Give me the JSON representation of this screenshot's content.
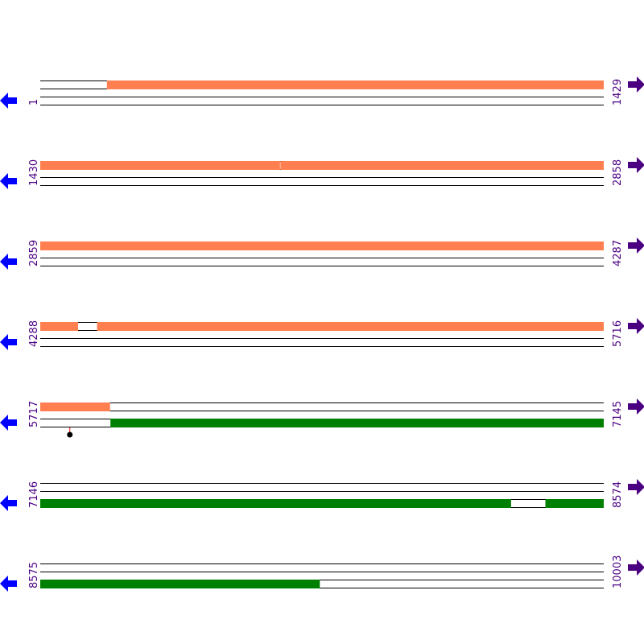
{
  "map": {
    "bases_per_row": 1429,
    "rows": [
      {
        "start": "1",
        "end": "1429"
      },
      {
        "start": "1430",
        "end": "2858"
      },
      {
        "start": "2859",
        "end": "4287"
      },
      {
        "start": "4288",
        "end": "5716"
      },
      {
        "start": "5717",
        "end": "7145"
      },
      {
        "start": "7146",
        "end": "8574"
      },
      {
        "start": "8575",
        "end": "10003"
      }
    ],
    "features": [
      {
        "track": "top",
        "color": "#ff7f50",
        "segments": [
          [
            170,
            2037
          ],
          [
            2039,
            4383
          ],
          [
            4432,
            5893
          ]
        ]
      },
      {
        "track": "bottom",
        "color": "#008000",
        "segments": [
          [
            5895,
            8339
          ],
          [
            8427,
            9283
          ]
        ]
      }
    ],
    "markers": [
      {
        "position": 5792,
        "color": "#ff0000"
      }
    ],
    "colors": {
      "label": "#4b0082",
      "left_arrow": "#0000ff",
      "right_arrow": "#4b0082"
    },
    "icons": {
      "left": "arrow-left-icon",
      "right": "arrow-right-icon"
    }
  }
}
